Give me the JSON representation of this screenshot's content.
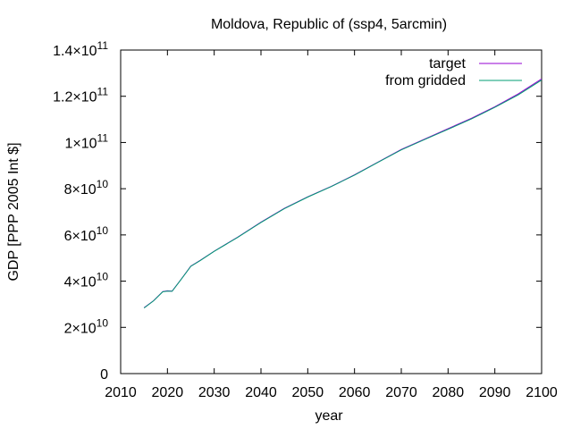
{
  "chart_data": {
    "type": "line",
    "title": "Moldova, Republic of (ssp4, 5arcmin)",
    "xlabel": "year",
    "ylabel": "GDP [PPP 2005 Int $]",
    "xlim": [
      2010,
      2100
    ],
    "ylim": [
      0,
      140000000000
    ],
    "x_ticks": [
      2010,
      2020,
      2030,
      2040,
      2050,
      2060,
      2070,
      2080,
      2090,
      2100
    ],
    "x_tick_labels": [
      "2010",
      "2020",
      "2030",
      "2040",
      "2050",
      "2060",
      "2070",
      "2080",
      "2090",
      "2100"
    ],
    "y_ticks": [
      0,
      20000000000,
      40000000000,
      60000000000,
      80000000000,
      100000000000,
      120000000000,
      140000000000
    ],
    "y_tick_labels": [
      {
        "base": "0",
        "exp": ""
      },
      {
        "base": "2×10",
        "exp": "10"
      },
      {
        "base": "4×10",
        "exp": "10"
      },
      {
        "base": "6×10",
        "exp": "10"
      },
      {
        "base": "8×10",
        "exp": "10"
      },
      {
        "base": "1×10",
        "exp": "11"
      },
      {
        "base": "1.2×10",
        "exp": "11"
      },
      {
        "base": "1.4×10",
        "exp": "11"
      }
    ],
    "grid": false,
    "legend_position": "top-right",
    "series": [
      {
        "name": "target",
        "color": "#9400d3",
        "x": [
          2015,
          2017,
          2019,
          2020,
          2021,
          2023,
          2025,
          2027,
          2030,
          2035,
          2040,
          2045,
          2050,
          2055,
          2060,
          2065,
          2070,
          2075,
          2080,
          2085,
          2090,
          2095,
          2100
        ],
        "y": [
          28500000000,
          31500000000,
          35500000000,
          35800000000,
          35700000000,
          41000000000,
          46500000000,
          49000000000,
          53000000000,
          59000000000,
          65500000000,
          71500000000,
          76500000000,
          81000000000,
          86000000000,
          91500000000,
          97000000000,
          101500000000,
          106000000000,
          110500000000,
          115500000000,
          121000000000,
          127500000000
        ]
      },
      {
        "name": "from gridded",
        "color": "#009e73",
        "x": [
          2015,
          2017,
          2019,
          2020,
          2021,
          2023,
          2025,
          2027,
          2030,
          2035,
          2040,
          2045,
          2050,
          2055,
          2060,
          2065,
          2070,
          2075,
          2080,
          2085,
          2090,
          2095,
          2100
        ],
        "y": [
          28400000000,
          31400000000,
          35400000000,
          35700000000,
          35600000000,
          40900000000,
          46400000000,
          48900000000,
          52900000000,
          58900000000,
          65400000000,
          71400000000,
          76400000000,
          80900000000,
          85900000000,
          91400000000,
          96800000000,
          101300000000,
          105700000000,
          110200000000,
          115200000000,
          120600000000,
          127000000000
        ]
      }
    ]
  }
}
